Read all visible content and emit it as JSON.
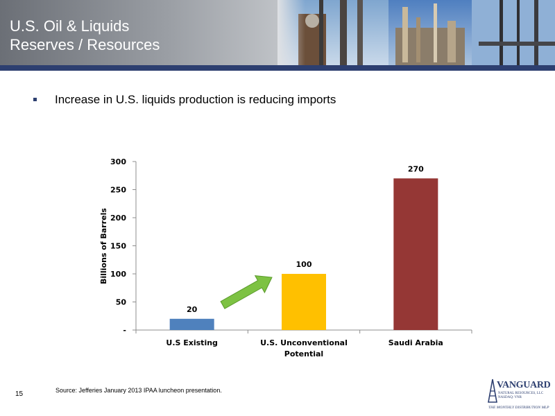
{
  "slide": {
    "title_line1": "U.S. Oil & Liquids",
    "title_line2": "Reserves / Resources",
    "bullet": "Increase in U.S. liquids production is reducing imports",
    "slide_number": "15",
    "source": "Source:  Jefferies January 2013 IPAA luncheon presentation."
  },
  "logo": {
    "name": "VANGUARD",
    "sub_line1": "NATURAL RESOURCES, LLC",
    "sub_line2": "NASDAQ: VNR",
    "tagline": "THE MONTHLY DISTRIBUTION MLP"
  },
  "colors": {
    "header_band": "#2d3f70",
    "arrow": "#7dc243"
  },
  "chart_data": {
    "type": "bar",
    "title": "",
    "xlabel": "",
    "ylabel": "Billions of Barrels",
    "ylim": [
      0,
      300
    ],
    "yticks": [
      {
        "value": 0,
        "label": "-"
      },
      {
        "value": 50,
        "label": "50"
      },
      {
        "value": 100,
        "label": "100"
      },
      {
        "value": 150,
        "label": "150"
      },
      {
        "value": 200,
        "label": "200"
      },
      {
        "value": 250,
        "label": "250"
      },
      {
        "value": 300,
        "label": "300"
      }
    ],
    "categories": [
      [
        "U.S Existing"
      ],
      [
        "U.S. Unconventional",
        "Potential"
      ],
      [
        "Saudi Arabia"
      ]
    ],
    "values": [
      20,
      100,
      270
    ],
    "bar_colors": [
      "#4f81bd",
      "#ffc000",
      "#953735"
    ],
    "data_labels": [
      "20",
      "100",
      "270"
    ],
    "grid": false,
    "legend": "none",
    "annotation": "green arrow from U.S Existing to U.S. Unconventional Potential"
  }
}
